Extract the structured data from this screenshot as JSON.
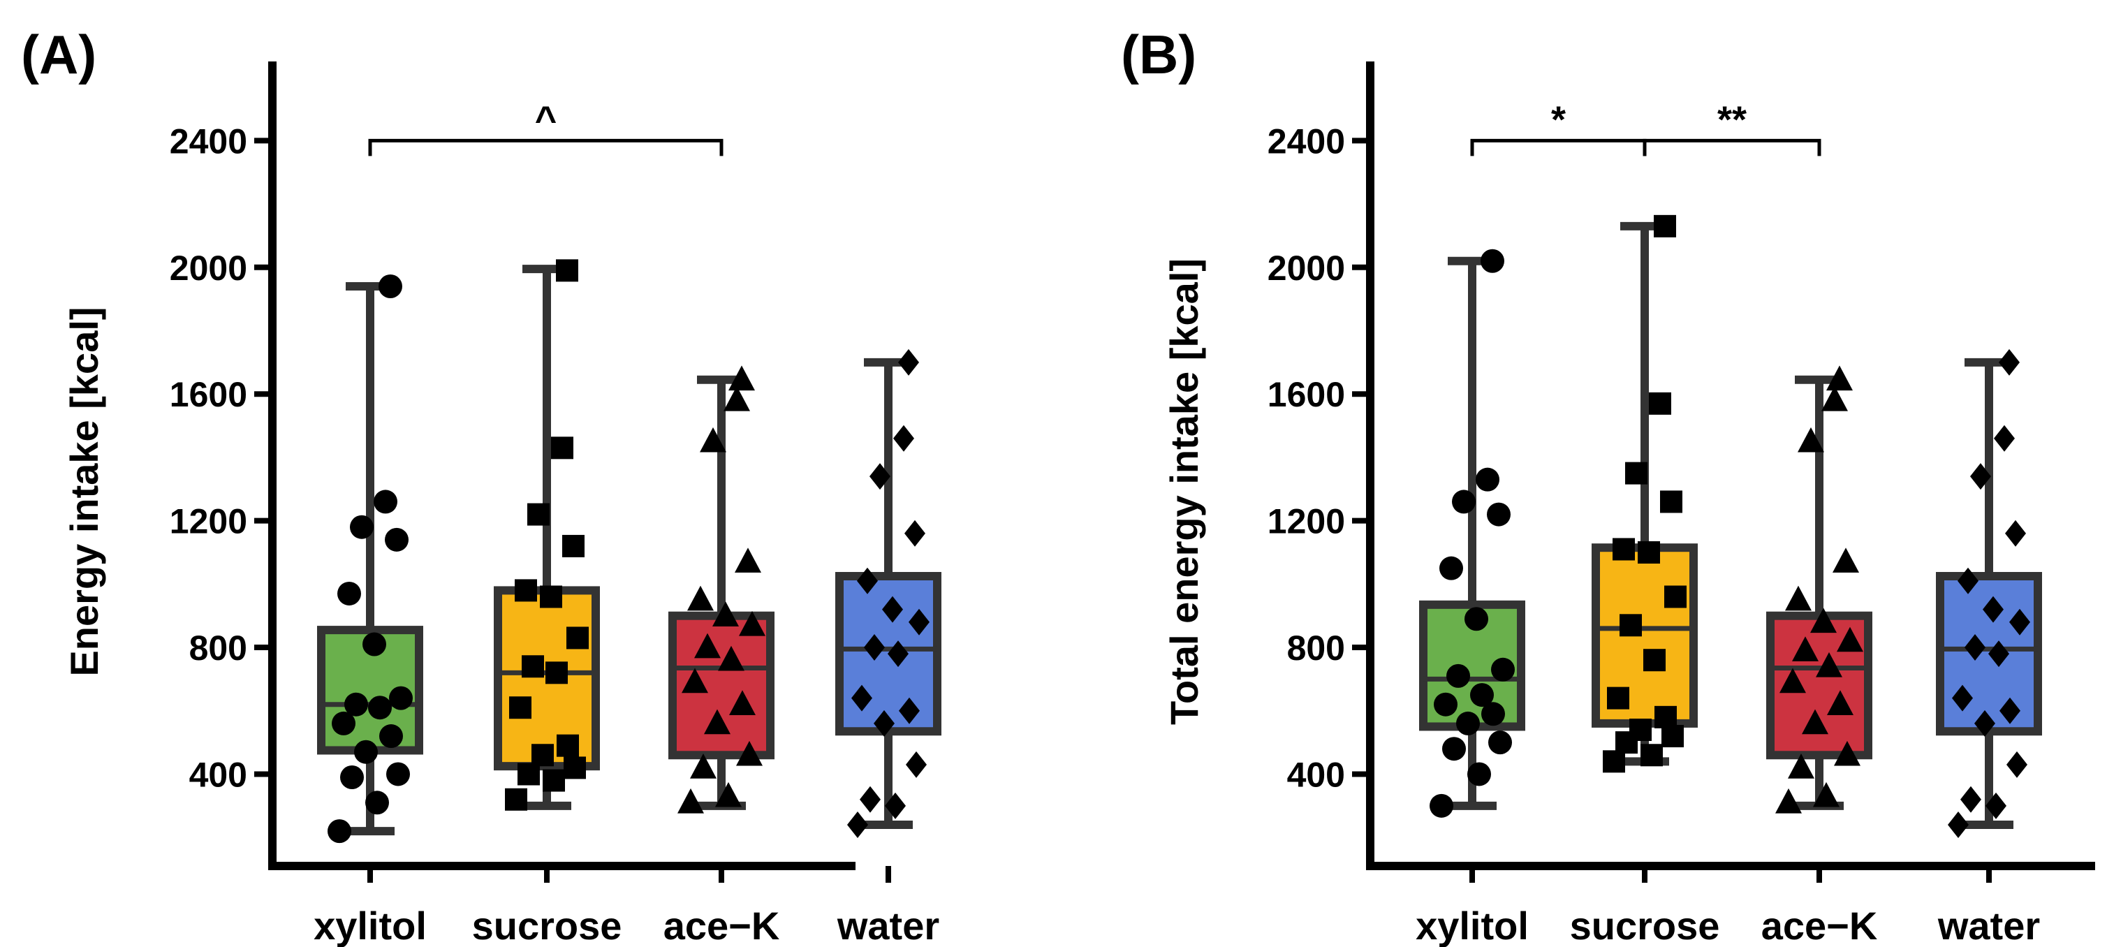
{
  "chart_data": [
    {
      "panel_label": "(A)",
      "type": "box",
      "title": "",
      "xlabel": "",
      "ylabel": "Energy intake [kcal]",
      "ylim": [
        110,
        2650
      ],
      "yticks": [
        400,
        800,
        1200,
        1600,
        2000,
        2400
      ],
      "categories": [
        "xylitol",
        "sucrose",
        "ace−K",
        "water"
      ],
      "grid": false,
      "series": [
        {
          "name": "xylitol",
          "color": "#6ab04c",
          "marker": "circle",
          "min": 220,
          "q1": 475,
          "median": 620,
          "q3": 855,
          "max": 1940,
          "points": [
            1940,
            1260,
            1180,
            1140,
            970,
            810,
            640,
            620,
            610,
            560,
            520,
            470,
            400,
            390,
            310,
            220
          ]
        },
        {
          "name": "sucrose",
          "color": "#f7b515",
          "marker": "square",
          "min": 300,
          "q1": 425,
          "median": 720,
          "q3": 980,
          "max": 1995,
          "points": [
            1990,
            1430,
            1220,
            1120,
            980,
            960,
            830,
            740,
            720,
            610,
            490,
            460,
            420,
            400,
            380,
            320
          ]
        },
        {
          "name": "ace−K",
          "color": "#cc3340",
          "marker": "triangle",
          "min": 300,
          "q1": 460,
          "median": 735,
          "q3": 900,
          "max": 1645,
          "points": [
            1645,
            1580,
            1450,
            1070,
            950,
            900,
            870,
            800,
            760,
            690,
            620,
            560,
            460,
            420,
            330,
            310
          ]
        },
        {
          "name": "water",
          "color": "#5a7fd9",
          "marker": "diamond",
          "min": 240,
          "q1": 535,
          "median": 795,
          "q3": 1025,
          "max": 1700,
          "points": [
            1700,
            1460,
            1340,
            1160,
            1010,
            920,
            880,
            800,
            780,
            640,
            600,
            560,
            430,
            320,
            300,
            240
          ]
        }
      ],
      "significance": [
        {
          "from": "xylitol",
          "to": "ace−K",
          "y": 2400,
          "label": "^"
        }
      ]
    },
    {
      "panel_label": "(B)",
      "type": "box",
      "title": "",
      "xlabel": "",
      "ylabel": "Total energy intake [kcal]",
      "ylim": [
        110,
        2650
      ],
      "yticks": [
        400,
        800,
        1200,
        1600,
        2000,
        2400
      ],
      "categories": [
        "xylitol",
        "sucrose",
        "ace−K",
        "water"
      ],
      "grid": false,
      "series": [
        {
          "name": "xylitol",
          "color": "#6ab04c",
          "marker": "circle",
          "min": 300,
          "q1": 550,
          "median": 700,
          "q3": 935,
          "max": 2020,
          "points": [
            2020,
            1330,
            1260,
            1220,
            1050,
            890,
            730,
            710,
            650,
            620,
            590,
            560,
            500,
            480,
            400,
            300
          ]
        },
        {
          "name": "sucrose",
          "color": "#f7b515",
          "marker": "square",
          "min": 440,
          "q1": 560,
          "median": 860,
          "q3": 1115,
          "max": 2130,
          "points": [
            2130,
            1570,
            1350,
            1260,
            1110,
            1100,
            960,
            870,
            760,
            640,
            580,
            540,
            520,
            500,
            460,
            440
          ]
        },
        {
          "name": "ace−K",
          "color": "#cc3340",
          "marker": "triangle",
          "min": 300,
          "q1": 460,
          "median": 735,
          "q3": 900,
          "max": 1645,
          "points": [
            1645,
            1580,
            1450,
            1070,
            950,
            880,
            820,
            790,
            740,
            690,
            620,
            560,
            460,
            420,
            330,
            310
          ]
        },
        {
          "name": "water",
          "color": "#5a7fd9",
          "marker": "diamond",
          "min": 240,
          "q1": 535,
          "median": 795,
          "q3": 1025,
          "max": 1700,
          "points": [
            1700,
            1460,
            1340,
            1160,
            1010,
            920,
            880,
            800,
            780,
            640,
            600,
            560,
            430,
            320,
            300,
            240
          ]
        }
      ],
      "significance": [
        {
          "from": "xylitol",
          "to": "sucrose",
          "y": 2400,
          "label": "*"
        },
        {
          "from": "sucrose",
          "to": "ace−K",
          "y": 2400,
          "label": "**"
        }
      ]
    }
  ]
}
